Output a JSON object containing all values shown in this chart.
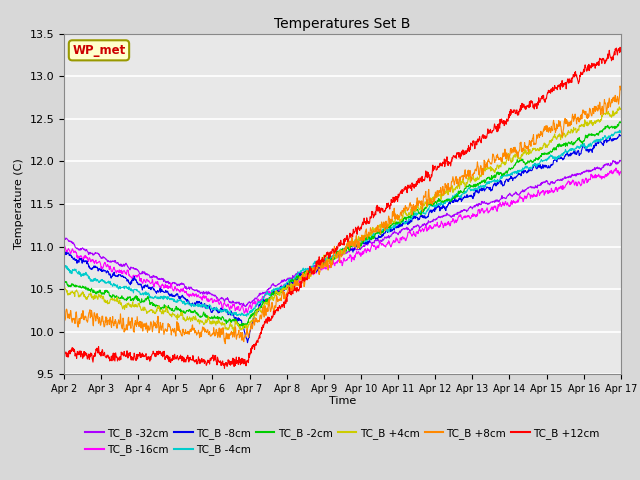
{
  "title": "Temperatures Set B",
  "xlabel": "Time",
  "ylabel": "Temperature (C)",
  "ylim": [
    9.5,
    13.5
  ],
  "background_color": "#d8d8d8",
  "plot_bg_color": "#e8e8e8",
  "grid_color": "white",
  "series_order": [
    "TC_B -32cm",
    "TC_B -16cm",
    "TC_B -8cm",
    "TC_B -4cm",
    "TC_B -2cm",
    "TC_B +4cm",
    "TC_B +8cm",
    "TC_B +12cm"
  ],
  "series_colors": {
    "TC_B -32cm": "#aa00ff",
    "TC_B -16cm": "#ff00ff",
    "TC_B -8cm": "#0000ee",
    "TC_B -4cm": "#00cccc",
    "TC_B -2cm": "#00cc00",
    "TC_B +4cm": "#cccc00",
    "TC_B +8cm": "#ff8800",
    "TC_B +12cm": "#ff0000"
  },
  "xtick_labels": [
    "Apr 2",
    "Apr 3",
    "Apr 4",
    "Apr 5",
    "Apr 6",
    "Apr 7",
    "Apr 8",
    "Apr 9",
    "Apr 10",
    "Apr 11",
    "Apr 12",
    "Apr 13",
    "Apr 14",
    "Apr 15",
    "Apr 16",
    "Apr 17"
  ],
  "ytick_values": [
    9.5,
    10.0,
    10.5,
    11.0,
    11.5,
    12.0,
    12.5,
    13.0,
    13.5
  ],
  "wp_met_label": "WP_met",
  "wp_met_color": "#cc0000",
  "wp_met_bg": "#ffffcc",
  "wp_met_edge": "#999900",
  "legend_ncol": 6
}
